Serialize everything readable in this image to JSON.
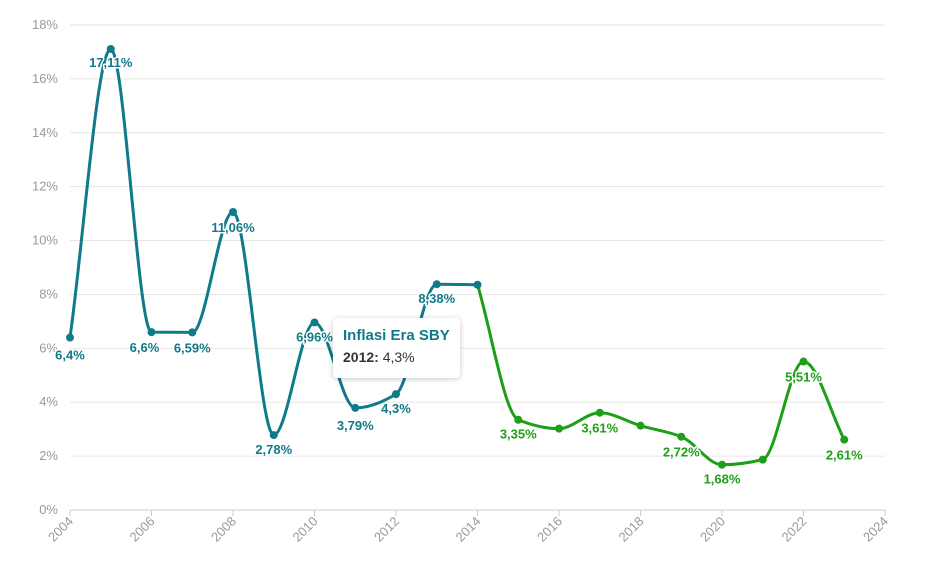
{
  "chart_data": {
    "type": "line",
    "xlim": [
      2004,
      2024
    ],
    "ylim": [
      0,
      18
    ],
    "x_ticks": [
      "2004",
      "2006",
      "2008",
      "2010",
      "2012",
      "2014",
      "2016",
      "2018",
      "2020",
      "2022",
      "2024"
    ],
    "y_ticks": [
      "0%",
      "2%",
      "4%",
      "6%",
      "8%",
      "10%",
      "12%",
      "14%",
      "16%",
      "18%"
    ],
    "grid": true,
    "series": [
      {
        "name": "Inflasi Era SBY",
        "color": "#0f7a8a",
        "points": [
          {
            "x": 2004,
            "y": 6.4,
            "label": "6,4%"
          },
          {
            "x": 2005,
            "y": 17.11,
            "label": "17,11%"
          },
          {
            "x": 2006,
            "y": 6.6,
            "label": "6,6%"
          },
          {
            "x": 2007,
            "y": 6.59,
            "label": "6,59%"
          },
          {
            "x": 2008,
            "y": 11.06,
            "label": "11,06%"
          },
          {
            "x": 2009,
            "y": 2.78,
            "label": "2,78%"
          },
          {
            "x": 2010,
            "y": 6.96,
            "label": "6,96%"
          },
          {
            "x": 2011,
            "y": 3.79,
            "label": "3,79%"
          },
          {
            "x": 2012,
            "y": 4.3,
            "label": "4,3%"
          },
          {
            "x": 2013,
            "y": 8.38,
            "label": "8,38%"
          },
          {
            "x": 2014,
            "y": 8.36,
            "label": ""
          }
        ]
      },
      {
        "color": "#1f9e1a",
        "points": [
          {
            "x": 2014,
            "y": 8.36,
            "label": ""
          },
          {
            "x": 2015,
            "y": 3.35,
            "label": "3,35%"
          },
          {
            "x": 2016,
            "y": 3.02,
            "label": ""
          },
          {
            "x": 2017,
            "y": 3.61,
            "label": "3,61%"
          },
          {
            "x": 2018,
            "y": 3.13,
            "label": ""
          },
          {
            "x": 2019,
            "y": 2.72,
            "label": "2,72%"
          },
          {
            "x": 2020,
            "y": 1.68,
            "label": "1,68%"
          },
          {
            "x": 2021,
            "y": 1.87,
            "label": ""
          },
          {
            "x": 2022,
            "y": 5.51,
            "label": "5,51%"
          },
          {
            "x": 2023,
            "y": 2.61,
            "label": "2,61%"
          }
        ]
      }
    ],
    "tooltip": {
      "title": "Inflasi Era SBY",
      "year": "2012",
      "value": "4,3%"
    }
  }
}
